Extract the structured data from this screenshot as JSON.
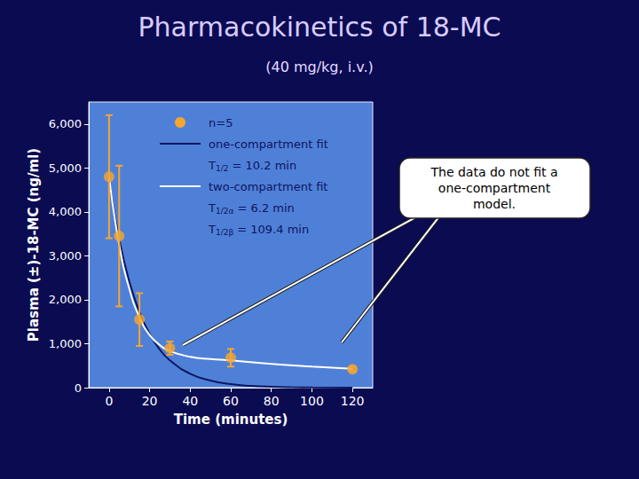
{
  "chart_data": {
    "type": "scatter",
    "title": "Pharmacokinetics of 18-MC",
    "subtitle": "(40 mg/kg, i.v.)",
    "xlabel": "Time (minutes)",
    "ylabel": "Plasma (±)-18-MC (ng/ml)",
    "xlim": [
      -10,
      130
    ],
    "xticks": [
      0,
      20,
      40,
      60,
      80,
      100,
      120
    ],
    "ylim": [
      0,
      6500
    ],
    "yticks": [
      0,
      1000,
      2000,
      3000,
      4000,
      5000,
      6000
    ],
    "grid": false,
    "legend": "upper left",
    "series": [
      {
        "name": "n=5",
        "type": "scatter",
        "marker": "circle",
        "color": "#f5a630",
        "x": [
          0,
          5,
          15,
          30,
          60,
          120
        ],
        "values": [
          4800,
          3450,
          1550,
          900,
          680,
          420
        ],
        "errors": [
          1400,
          1600,
          600,
          150,
          200,
          50
        ]
      },
      {
        "name": "one-compartment fit",
        "type": "line",
        "line_style": "solid",
        "color": "#0c1660",
        "x": [
          0,
          5,
          10,
          15,
          20,
          25,
          30,
          40,
          50,
          60,
          70,
          80,
          90,
          100,
          120
        ],
        "values": [
          4750,
          3380,
          2410,
          1720,
          1220,
          870,
          620,
          315,
          160,
          80,
          40,
          20,
          10,
          5,
          0
        ]
      },
      {
        "name": "two-compartment fit",
        "type": "line",
        "line_style": "solid",
        "color": "#ffffff",
        "x": [
          0,
          5,
          10,
          15,
          20,
          25,
          30,
          40,
          50,
          60,
          80,
          100,
          120
        ],
        "values": [
          4800,
          3250,
          2250,
          1600,
          1200,
          970,
          830,
          700,
          650,
          620,
          540,
          480,
          430
        ]
      }
    ],
    "annotations": [
      {
        "series": "one-compartment fit",
        "text": "T",
        "subscript": "1/2",
        "suffix": " = 10.2 min"
      },
      {
        "series": "two-compartment fit",
        "text": "T",
        "subscript": "1/2α",
        "suffix": " = 6.2 min"
      },
      {
        "series": "two-compartment fit",
        "text": "T",
        "subscript": "1/2β",
        "suffix": " = 109.4 min"
      }
    ],
    "callout": "The data do not fit a\none-compartment\nmodel."
  }
}
